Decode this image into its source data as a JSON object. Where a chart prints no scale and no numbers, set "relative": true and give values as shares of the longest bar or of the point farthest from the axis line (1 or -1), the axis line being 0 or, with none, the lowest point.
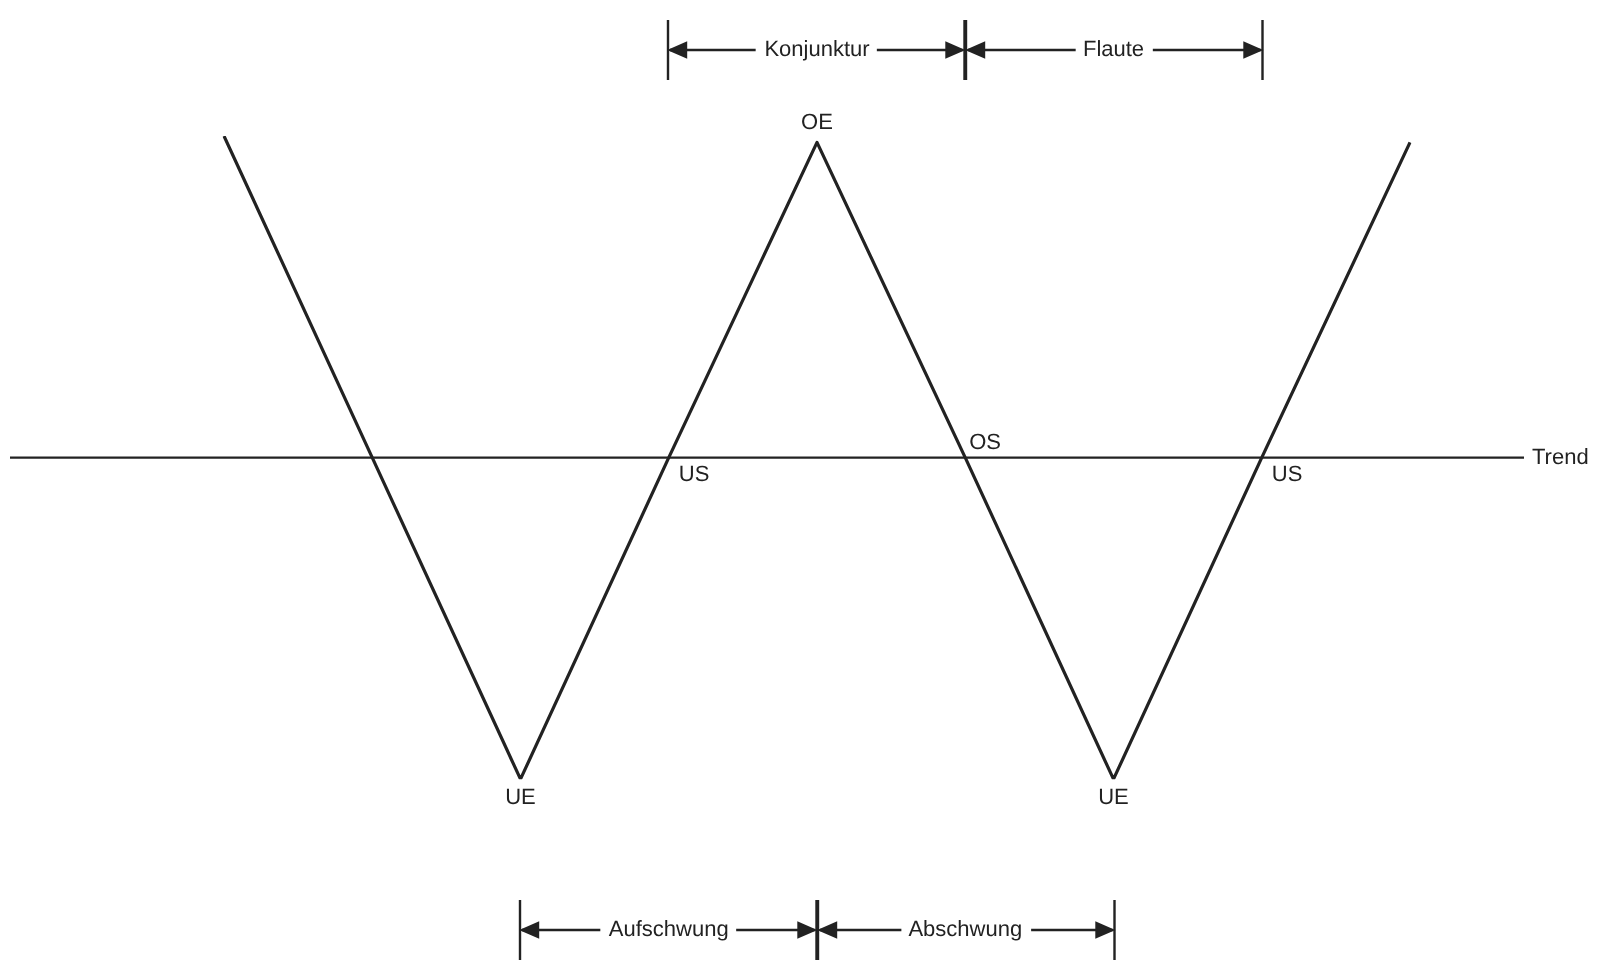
{
  "chart_data": {
    "type": "line",
    "relative": true,
    "categories": [
      null,
      null,
      null,
      null,
      null,
      null,
      null,
      null,
      null
    ],
    "series": [
      {
        "color": "#222222",
        "values": [
          1,
          0,
          -1,
          0,
          0.98,
          0,
          -1,
          0,
          0.98
        ]
      }
    ],
    "value_labels": [
      null,
      null,
      "UE",
      "US",
      "OE",
      "OS",
      "UE",
      "US",
      null
    ],
    "ref_lines": [
      {
        "axis": "y",
        "value": 0,
        "label": "Trend"
      }
    ],
    "annotations": [
      "Konjunktur",
      "Flaute",
      "Aufschwung",
      "Abschwung"
    ],
    "marker": "none",
    "grid": false,
    "legend": false
  }
}
